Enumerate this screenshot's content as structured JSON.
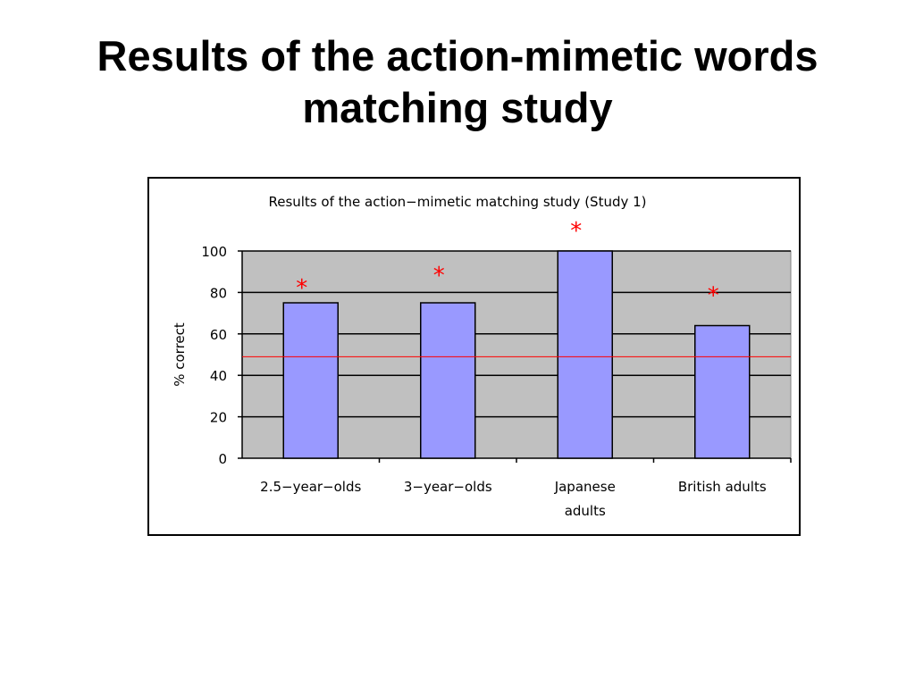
{
  "slide": {
    "title_line1": "Results of the action-mimetic words",
    "title_line2": "matching study"
  },
  "chart_data": {
    "type": "bar",
    "title": "Results of the action−mimetic matching study (Study 1)",
    "xlabel": "",
    "ylabel": "% correct",
    "categories": [
      [
        "2.5−year−olds"
      ],
      [
        "3−year−olds"
      ],
      [
        "Japanese",
        "adults"
      ],
      [
        "British adults"
      ]
    ],
    "values": [
      75,
      75,
      100,
      64
    ],
    "significance_markers": [
      "*",
      "*",
      "*",
      "*"
    ],
    "chance_level": 49,
    "ylim": [
      0,
      100
    ],
    "yticks": [
      0,
      20,
      40,
      60,
      80,
      100
    ],
    "grid": true,
    "legend": "none",
    "colors": {
      "bar_fill": "#9999ff",
      "bar_stroke": "#000000",
      "plot_background": "#c0c0c0",
      "gridline": "#000000",
      "chance_line": "#ff0000",
      "marker": "#ff0000"
    }
  }
}
